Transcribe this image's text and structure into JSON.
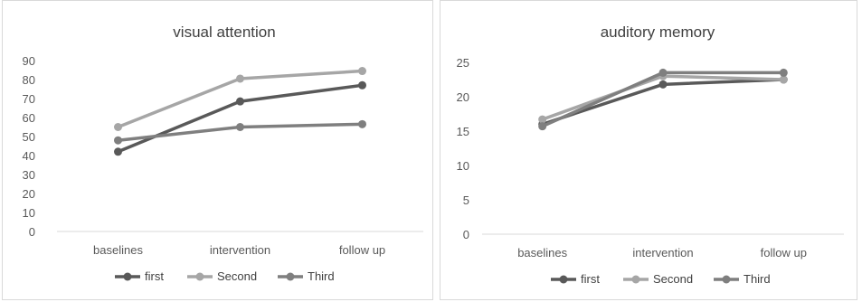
{
  "chart_data": [
    {
      "type": "line",
      "title": "visual attention",
      "categories": [
        "baselines",
        "intervention",
        "follow up"
      ],
      "ylim": [
        0,
        90
      ],
      "yticks": [
        0,
        10,
        20,
        30,
        40,
        50,
        60,
        70,
        80,
        90
      ],
      "grid": false,
      "legend": "bottom",
      "series": [
        {
          "name": "first",
          "values": [
            42,
            68.5,
            77
          ],
          "color": "#595959"
        },
        {
          "name": "Second",
          "values": [
            55,
            80.5,
            84.5
          ],
          "color": "#a6a6a6"
        },
        {
          "name": "Third",
          "values": [
            48,
            55,
            56.5
          ],
          "color": "#7f7f7f"
        }
      ]
    },
    {
      "type": "line",
      "title": "auditory memory",
      "categories": [
        "baselines",
        "intervention",
        "follow up"
      ],
      "ylim": [
        0,
        25
      ],
      "yticks": [
        0,
        5,
        10,
        15,
        20,
        25
      ],
      "grid": false,
      "legend": "bottom",
      "series": [
        {
          "name": "first",
          "values": [
            16,
            21.8,
            22.5
          ],
          "color": "#595959"
        },
        {
          "name": "Second",
          "values": [
            16.7,
            23,
            22.5
          ],
          "color": "#a6a6a6"
        },
        {
          "name": "Third",
          "values": [
            15.7,
            23.5,
            23.5
          ],
          "color": "#7f7f7f"
        }
      ]
    }
  ]
}
